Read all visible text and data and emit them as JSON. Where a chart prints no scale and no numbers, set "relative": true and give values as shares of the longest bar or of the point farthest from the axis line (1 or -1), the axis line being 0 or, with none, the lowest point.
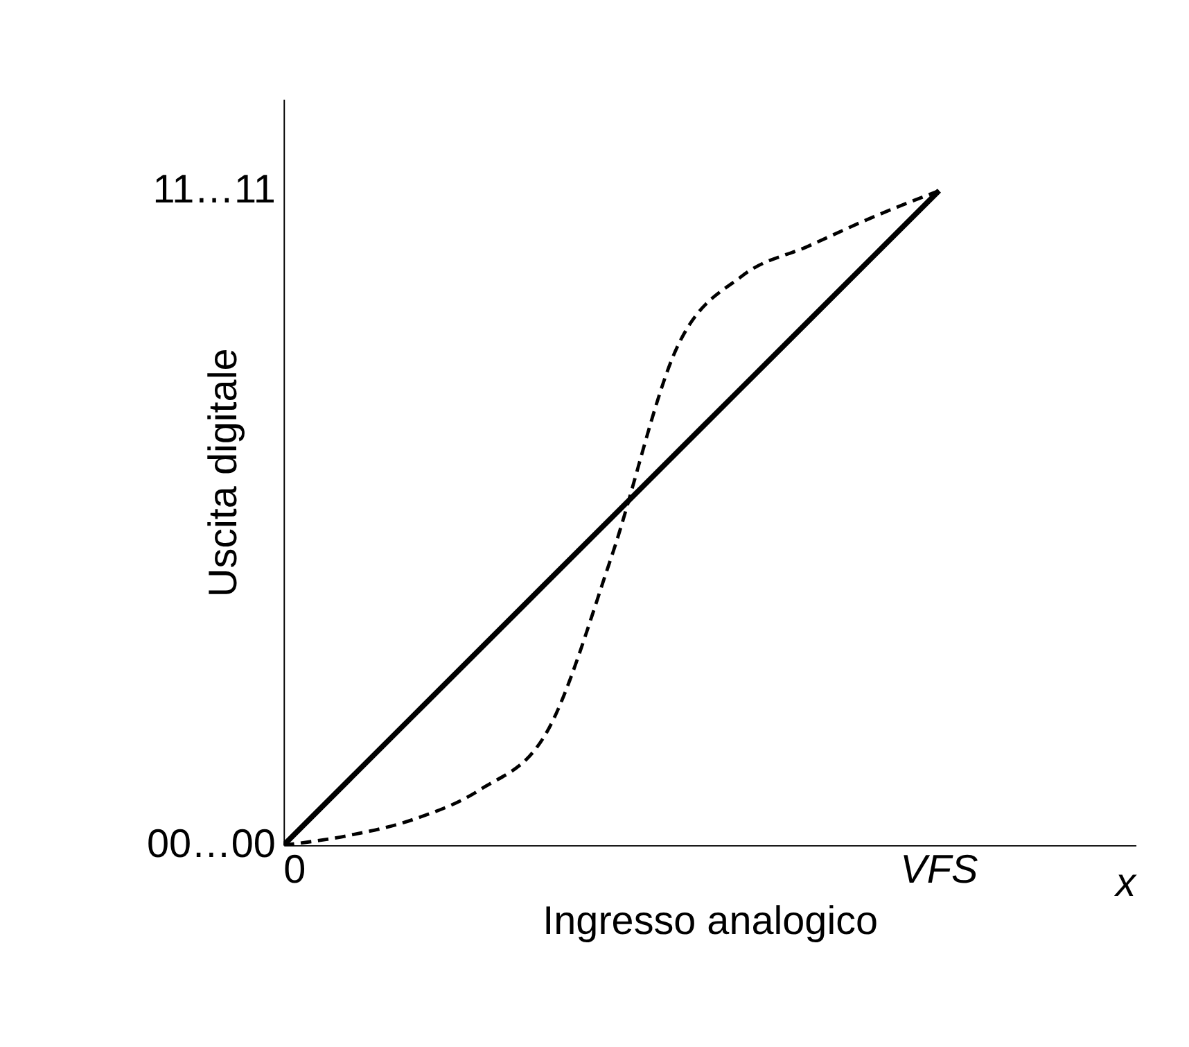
{
  "chart_data": {
    "type": "line",
    "relative": true,
    "xlabel": "Ingresso analogico",
    "ylabel": "Uscita digitale",
    "categories": [
      null,
      null,
      null,
      null,
      null,
      null,
      null,
      null,
      null,
      null,
      null,
      null,
      null,
      null
    ],
    "grid": false,
    "marker": "none",
    "annotations": [
      "0",
      "VFS",
      "00…00",
      "11…11",
      "x"
    ],
    "series": [
      {
        "color": "#000000",
        "line_style": "solid",
        "values": [
          0,
          0.1,
          0.2,
          0.3,
          0.4,
          0.5,
          0.6,
          0.7,
          0.8,
          0.9,
          1,
          null,
          null,
          null
        ]
      },
      {
        "color": "#000000",
        "line_style": "dashed",
        "values": [
          0,
          0.015,
          0.04,
          0.085,
          0.17,
          0.44,
          0.76,
          0.87,
          0.915,
          0.96,
          1,
          null,
          null,
          null
        ]
      }
    ]
  }
}
